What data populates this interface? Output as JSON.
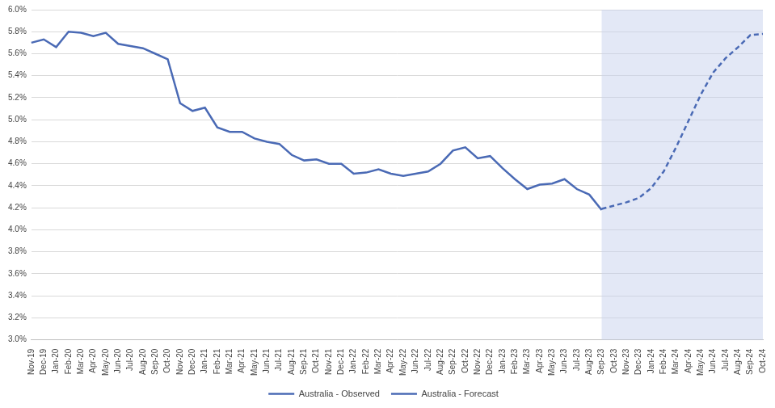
{
  "chart_data": {
    "type": "line",
    "categories": [
      "Nov-19",
      "Dec-19",
      "Jan-20",
      "Feb-20",
      "Mar-20",
      "Apr-20",
      "May-20",
      "Jun-20",
      "Jul-20",
      "Aug-20",
      "Sep-20",
      "Oct-20",
      "Nov-20",
      "Dec-20",
      "Jan-21",
      "Feb-21",
      "Mar-21",
      "Apr-21",
      "May-21",
      "Jun-21",
      "Jul-21",
      "Aug-21",
      "Sep-21",
      "Oct-21",
      "Nov-21",
      "Dec-21",
      "Jan-22",
      "Feb-22",
      "Mar-22",
      "Apr-22",
      "May-22",
      "Jun-22",
      "Jul-22",
      "Aug-22",
      "Sep-22",
      "Oct-22",
      "Nov-22",
      "Dec-22",
      "Jan-23",
      "Feb-23",
      "Mar-23",
      "Apr-23",
      "May-23",
      "Jun-23",
      "Jul-23",
      "Aug-23",
      "Sep-23",
      "Oct-23",
      "Nov-23",
      "Dec-23",
      "Jan-24",
      "Feb-24",
      "Mar-24",
      "Apr-24",
      "May-24",
      "Jun-24",
      "Jul-24",
      "Aug-24",
      "Sep-24",
      "Oct-24"
    ],
    "series": [
      {
        "name": "Australia - Observed",
        "color": "#4a6ab5",
        "line_style": "solid",
        "values": [
          5.7,
          5.73,
          5.66,
          5.8,
          5.79,
          5.76,
          5.79,
          5.69,
          5.67,
          5.65,
          5.6,
          5.55,
          5.15,
          5.08,
          5.11,
          4.93,
          4.89,
          4.89,
          4.83,
          4.8,
          4.78,
          4.68,
          4.63,
          4.64,
          4.6,
          4.6,
          4.51,
          4.52,
          4.55,
          4.51,
          4.49,
          4.51,
          4.53,
          4.6,
          4.72,
          4.75,
          4.65,
          4.67,
          4.56,
          4.46,
          4.37,
          4.41,
          4.42,
          4.46,
          4.37,
          4.32,
          4.18,
          null,
          null,
          null,
          null,
          null,
          null,
          null,
          null,
          null,
          null,
          null,
          null,
          null
        ]
      },
      {
        "name": "Australia - Forecast",
        "color": "#4a6ab5",
        "line_style": "dashed",
        "values": [
          null,
          null,
          null,
          null,
          null,
          null,
          null,
          null,
          null,
          null,
          null,
          null,
          null,
          null,
          null,
          null,
          null,
          null,
          null,
          null,
          null,
          null,
          null,
          null,
          null,
          null,
          null,
          null,
          null,
          null,
          null,
          null,
          null,
          null,
          null,
          null,
          null,
          null,
          null,
          null,
          null,
          null,
          null,
          null,
          null,
          null,
          4.19,
          4.22,
          4.25,
          4.29,
          4.38,
          4.53,
          4.75,
          4.99,
          5.23,
          5.43,
          5.56,
          5.66,
          5.77,
          5.78
        ]
      }
    ],
    "ylim": [
      3.0,
      6.0
    ],
    "yticks": [
      {
        "value": 3.0,
        "label": "3.0%"
      },
      {
        "value": 3.2,
        "label": "3.2%"
      },
      {
        "value": 3.4,
        "label": "3.4%"
      },
      {
        "value": 3.6,
        "label": "3.6%"
      },
      {
        "value": 3.8,
        "label": "3.8%"
      },
      {
        "value": 4.0,
        "label": "4.0%"
      },
      {
        "value": 4.2,
        "label": "4.2%"
      },
      {
        "value": 4.4,
        "label": "4.4%"
      },
      {
        "value": 4.6,
        "label": "4.6%"
      },
      {
        "value": 4.8,
        "label": "4.8%"
      },
      {
        "value": 5.0,
        "label": "5.0%"
      },
      {
        "value": 5.2,
        "label": "5.2%"
      },
      {
        "value": 5.4,
        "label": "5.4%"
      },
      {
        "value": 5.6,
        "label": "5.6%"
      },
      {
        "value": 5.8,
        "label": "5.8%"
      },
      {
        "value": 6.0,
        "label": "6.0%"
      }
    ],
    "grid": true,
    "legend": "bottom"
  }
}
